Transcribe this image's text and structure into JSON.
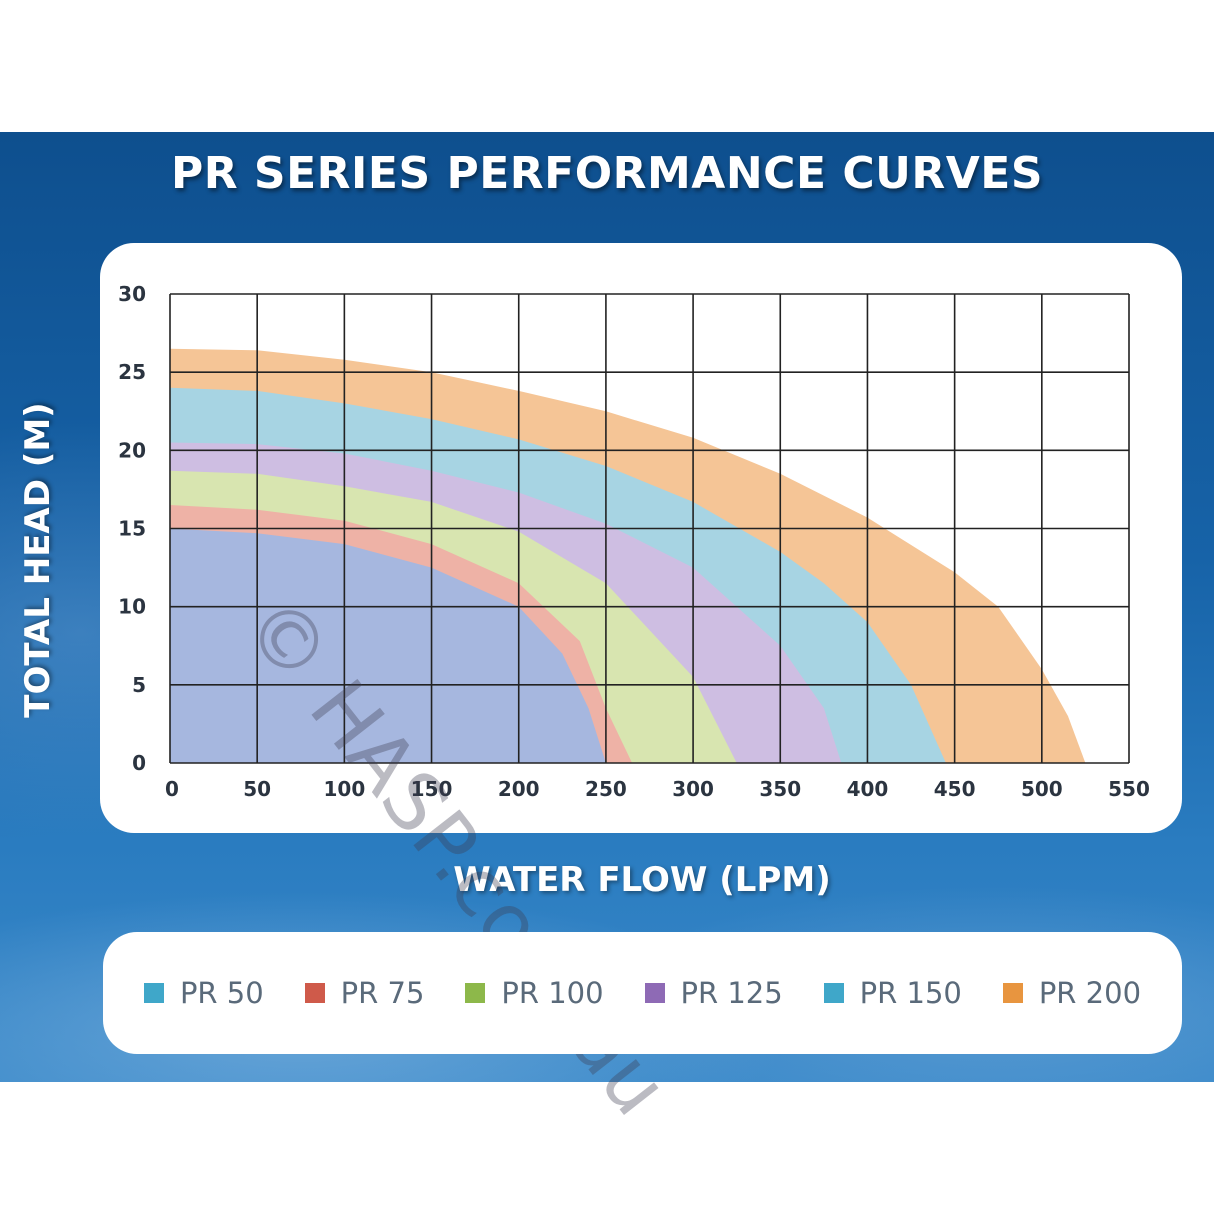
{
  "chart_data": {
    "type": "area",
    "title": "PR SERIES PERFORMANCE CURVES",
    "xlabel": "WATER FLOW (LPM)",
    "ylabel": "TOTAL HEAD (M)",
    "xlim": [
      0,
      550
    ],
    "ylim": [
      0,
      30
    ],
    "x_ticks": [
      0,
      50,
      100,
      150,
      200,
      250,
      300,
      350,
      400,
      450,
      500,
      550
    ],
    "y_ticks": [
      0,
      5,
      10,
      15,
      20,
      25,
      30
    ],
    "grid": true,
    "legend_position": "bottom",
    "series": [
      {
        "name": "PR 200",
        "color": "#f5c596",
        "legend_color": "#e8953f",
        "points": [
          [
            0,
            26.5
          ],
          [
            50,
            26.4
          ],
          [
            100,
            25.8
          ],
          [
            150,
            25.0
          ],
          [
            200,
            23.8
          ],
          [
            250,
            22.5
          ],
          [
            300,
            20.8
          ],
          [
            350,
            18.5
          ],
          [
            400,
            15.7
          ],
          [
            450,
            12.2
          ],
          [
            475,
            10.0
          ],
          [
            500,
            6.0
          ],
          [
            515,
            3.0
          ],
          [
            525,
            0
          ]
        ]
      },
      {
        "name": "PR 150",
        "color": "#a7d4e3",
        "legend_color": "#3fa7c9",
        "points": [
          [
            0,
            24.0
          ],
          [
            50,
            23.8
          ],
          [
            100,
            23.0
          ],
          [
            150,
            22.0
          ],
          [
            200,
            20.7
          ],
          [
            250,
            19.0
          ],
          [
            300,
            16.7
          ],
          [
            350,
            13.5
          ],
          [
            375,
            11.5
          ],
          [
            400,
            9.0
          ],
          [
            425,
            5.0
          ],
          [
            445,
            0
          ]
        ]
      },
      {
        "name": "PR 125",
        "color": "#cebee2",
        "legend_color": "#8e6ab5",
        "points": [
          [
            0,
            20.5
          ],
          [
            50,
            20.4
          ],
          [
            100,
            19.8
          ],
          [
            150,
            18.7
          ],
          [
            200,
            17.3
          ],
          [
            250,
            15.3
          ],
          [
            300,
            12.5
          ],
          [
            350,
            7.5
          ],
          [
            375,
            3.5
          ],
          [
            385,
            0
          ]
        ]
      },
      {
        "name": "PR 100",
        "color": "#d8e5b0",
        "legend_color": "#8db84a",
        "points": [
          [
            0,
            18.7
          ],
          [
            50,
            18.5
          ],
          [
            100,
            17.7
          ],
          [
            150,
            16.7
          ],
          [
            200,
            14.8
          ],
          [
            250,
            11.5
          ],
          [
            300,
            5.5
          ],
          [
            325,
            0
          ]
        ]
      },
      {
        "name": "PR 75",
        "color": "#eeb2a6",
        "legend_color": "#cf5a4a",
        "points": [
          [
            0,
            16.5
          ],
          [
            50,
            16.2
          ],
          [
            100,
            15.5
          ],
          [
            150,
            14.0
          ],
          [
            200,
            11.5
          ],
          [
            235,
            7.8
          ],
          [
            250,
            3.5
          ],
          [
            265,
            0
          ]
        ]
      },
      {
        "name": "PR 50",
        "color": "#a6b7df",
        "legend_color": "#3fa7c9",
        "points": [
          [
            0,
            15.0
          ],
          [
            50,
            14.7
          ],
          [
            100,
            14.0
          ],
          [
            150,
            12.5
          ],
          [
            200,
            10.0
          ],
          [
            225,
            7.0
          ],
          [
            240,
            3.5
          ],
          [
            250,
            0
          ]
        ]
      }
    ]
  },
  "legend": [
    {
      "label": "PR 50",
      "color": "#3fa7c9"
    },
    {
      "label": "PR 75",
      "color": "#cf5a4a"
    },
    {
      "label": "PR 100",
      "color": "#8db84a"
    },
    {
      "label": "PR 125",
      "color": "#8e6ab5"
    },
    {
      "label": "PR 150",
      "color": "#3fa7c9"
    },
    {
      "label": "PR 200",
      "color": "#e8953f"
    }
  ],
  "watermark": "© HASP.com.au"
}
